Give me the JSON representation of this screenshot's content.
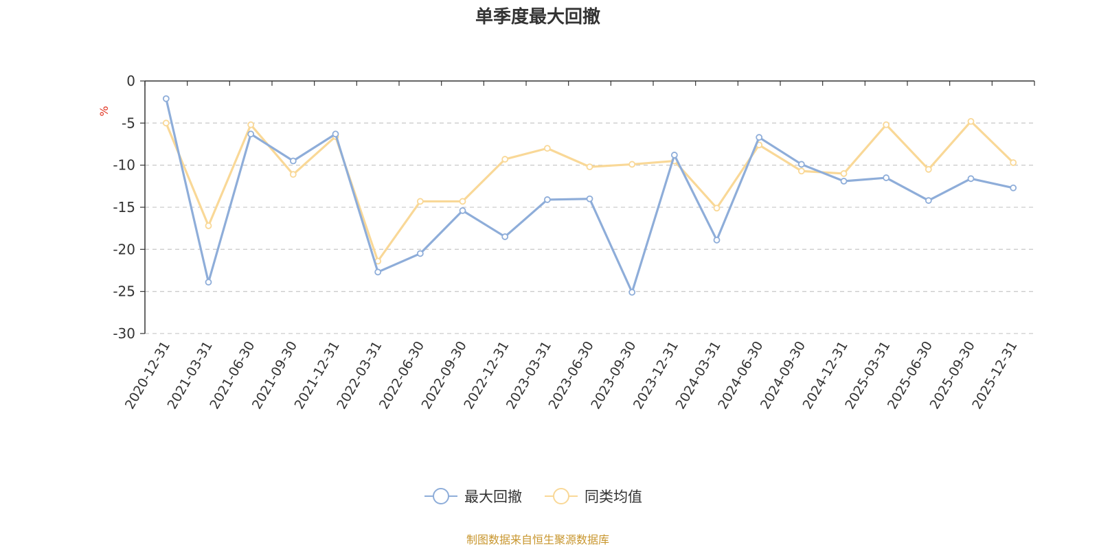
{
  "chart_data": {
    "type": "line",
    "title": "单季度最大回撤",
    "ylabel": "%",
    "ylim": [
      -30,
      0
    ],
    "yticks": [
      0,
      -5,
      -10,
      -15,
      -20,
      -25,
      -30
    ],
    "grid": "horizontal-dashed",
    "legend_position": "bottom-center",
    "categories": [
      "2020-12-31",
      "2021-03-31",
      "2021-06-30",
      "2021-09-30",
      "2021-12-31",
      "2022-03-31",
      "2022-06-30",
      "2022-09-30",
      "2022-12-31",
      "2023-03-31",
      "2023-06-30",
      "2023-09-30",
      "2023-12-31",
      "2024-03-31",
      "2024-06-30",
      "2024-09-30",
      "2024-12-31",
      "2025-03-31",
      "2025-06-30",
      "2025-09-30",
      "2025-12-31"
    ],
    "series": [
      {
        "name": "最大回撤",
        "color": "#8EADD9",
        "values": [
          -2.1,
          -23.9,
          -6.3,
          -9.5,
          -6.3,
          -22.7,
          -20.5,
          -15.4,
          -18.5,
          -14.1,
          -14.0,
          -25.1,
          -8.8,
          -18.9,
          -6.7,
          -9.9,
          -11.9,
          -11.5,
          -14.2,
          -11.6,
          -12.7
        ]
      },
      {
        "name": "同类均值",
        "color": "#F9D897",
        "values": [
          -5.0,
          -17.2,
          -5.2,
          -11.1,
          -6.6,
          -21.4,
          -14.3,
          -14.3,
          -9.3,
          -8.0,
          -10.2,
          -9.9,
          -9.5,
          -15.1,
          -7.6,
          -10.7,
          -11.0,
          -5.2,
          -10.5,
          -4.8,
          -9.7
        ]
      }
    ]
  },
  "legend": {
    "items": [
      {
        "label": "最大回撤",
        "color": "#8EADD9"
      },
      {
        "label": "同类均值",
        "color": "#F9D897"
      }
    ]
  },
  "footer": {
    "source_text": "制图数据来自恒生聚源数据库",
    "color": "#C8962E"
  },
  "unit_color": "#E0301E"
}
